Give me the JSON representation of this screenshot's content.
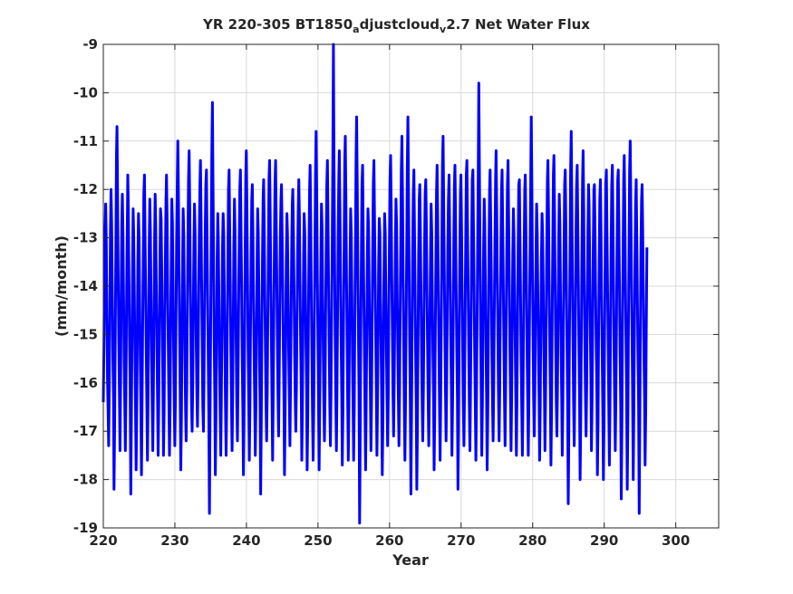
{
  "chart_data": {
    "type": "line",
    "title_parts": [
      "YR 220-305 BT1850",
      "a",
      "djustcloud",
      "v",
      "2.7 Net Water Flux"
    ],
    "xlabel": "Year",
    "ylabel": "(mm/month)",
    "xlim": [
      220,
      306
    ],
    "ylim": [
      -19,
      -9
    ],
    "xticks": [
      220,
      230,
      240,
      250,
      260,
      270,
      280,
      290,
      300
    ],
    "yticks": [
      -9,
      -10,
      -11,
      -12,
      -13,
      -14,
      -15,
      -16,
      -17,
      -18,
      -19
    ],
    "grid": true,
    "line_color": "#0000ff",
    "series": [
      {
        "x_start": 220.0,
        "x_step": 0.0833,
        "values": [
          -16.4,
          -15.2,
          -13.8,
          -12.8,
          -12.3,
          -13.1,
          -14.6,
          -15.9,
          -16.6,
          -17.3,
          -16.1,
          -14.4,
          -12.8,
          -12.0,
          -12.7,
          -14.0,
          -15.4,
          -16.3,
          -18.2,
          -16.9,
          -15.0,
          -13.3,
          -11.3,
          -10.7,
          -12.2,
          -13.8,
          -15.2,
          -16.3,
          -17.4,
          -16.0,
          -14.2,
          -12.7,
          -12.1,
          -12.9,
          -14.3,
          -15.6,
          -16.5,
          -17.4,
          -16.2,
          -14.5,
          -13.0,
          -11.7,
          -12.4,
          -13.8,
          -15.1,
          -16.1,
          -18.3,
          -16.9,
          -15.2,
          -13.7,
          -12.4,
          -12.9,
          -14.1,
          -15.4,
          -16.5,
          -17.8,
          -16.8,
          -15.1,
          -13.5,
          -12.5,
          -13.0,
          -14.3,
          -15.6,
          -16.5,
          -17.9,
          -16.6,
          -14.9,
          -13.3,
          -12.1,
          -11.7,
          -12.8,
          -14.1,
          -15.4,
          -16.4,
          -17.6,
          -16.5,
          -14.8,
          -13.2,
          -12.2,
          -12.9,
          -14.2,
          -15.5,
          -16.4,
          -17.4,
          -16.3,
          -14.6,
          -13.0,
          -12.1,
          -12.8,
          -14.0,
          -15.3,
          -16.3,
          -17.5,
          -16.4,
          -14.9,
          -13.4,
          -12.4,
          -12.6,
          -13.7,
          -15.0,
          -16.2,
          -17.5,
          -16.6,
          -15.0,
          -13.5,
          -12.3,
          -11.7,
          -12.6,
          -14.0,
          -15.3,
          -16.3,
          -17.5,
          -16.5,
          -14.9,
          -13.3,
          -12.2,
          -12.7,
          -13.9,
          -15.3,
          -16.5,
          -17.3,
          -16.3,
          -14.7,
          -13.1,
          -11.9,
          -11.0,
          -12.1,
          -13.6,
          -15.0,
          -16.2,
          -17.8,
          -16.7,
          -15.0,
          -13.4,
          -12.4,
          -12.9,
          -14.2,
          -15.6,
          -16.6,
          -17.2,
          -16.1,
          -14.5,
          -13.0,
          -11.8,
          -11.2,
          -12.4,
          -13.9,
          -15.3,
          -16.4,
          -17.0,
          -16.0,
          -14.5,
          -13.1,
          -12.3,
          -12.9,
          -14.1,
          -15.3,
          -16.3,
          -16.9,
          -15.8,
          -14.3,
          -12.9,
          -12.0,
          -11.4,
          -12.6,
          -14.0,
          -15.4,
          -16.5,
          -17.0,
          -15.9,
          -14.3,
          -12.8,
          -11.9,
          -11.6,
          -12.8,
          -14.2,
          -15.6,
          -16.7,
          -18.7,
          -16.9,
          -15.0,
          -13.2,
          -11.3,
          -10.2,
          -11.8,
          -13.5,
          -15.1,
          -16.3,
          -17.9,
          -16.7,
          -15.0,
          -13.4,
          -12.5,
          -13.0,
          -14.3,
          -15.6,
          -16.6,
          -17.5,
          -16.4,
          -14.8,
          -13.2,
          -12.5,
          -12.9,
          -14.1,
          -15.4,
          -16.5,
          -17.5,
          -16.5,
          -14.9,
          -13.3,
          -12.0,
          -11.6,
          -12.7,
          -14.0,
          -15.3,
          -16.4,
          -17.4,
          -16.3,
          -14.7,
          -13.2,
          -12.2,
          -12.8,
          -14.1,
          -15.4,
          -16.5,
          -17.2,
          -16.1,
          -14.5,
          -13.0,
          -12.0,
          -11.6,
          -12.7,
          -14.0,
          -15.4,
          -16.5,
          -17.9,
          -16.8,
          -15.0,
          -13.3,
          -11.7,
          -11.2,
          -12.4,
          -13.9,
          -15.3,
          -16.4,
          -17.6,
          -16.5,
          -14.9,
          -13.3,
          -12.2,
          -11.9,
          -12.9,
          -14.2,
          -15.5,
          -16.5,
          -17.5,
          -16.5,
          -14.9,
          -13.4,
          -12.4,
          -12.9,
          -14.2,
          -15.5,
          -16.5,
          -18.3,
          -16.8,
          -15.0,
          -13.4,
          -12.2,
          -11.8,
          -12.8,
          -14.1,
          -15.4,
          -16.4,
          -17.2,
          -16.2,
          -14.7,
          -13.1,
          -11.8,
          -11.4,
          -12.6,
          -13.9,
          -15.2,
          -16.3,
          -17.6,
          -16.4,
          -14.7,
          -13.1,
          -11.9,
          -11.4,
          -12.5,
          -13.8,
          -15.1,
          -16.2,
          -17.1,
          -16.1,
          -14.5,
          -13.0,
          -12.2,
          -11.9,
          -12.9,
          -14.1,
          -15.3,
          -16.3,
          -17.9,
          -16.7,
          -15.0,
          -13.4,
          -12.5,
          -12.9,
          -14.1,
          -15.3,
          -16.2,
          -17.3,
          -16.2,
          -14.7,
          -13.3,
          -12.3,
          -12.0,
          -12.9,
          -14.2,
          -15.4,
          -16.4,
          -17.0,
          -16.1,
          -14.7,
          -13.3,
          -12.4,
          -11.8,
          -12.6,
          -13.9,
          -15.2,
          -16.2,
          -17.6,
          -16.5,
          -14.9,
          -13.4,
          -12.5,
          -12.9,
          -14.0,
          -15.2,
          -16.2,
          -17.8,
          -16.7,
          -15.0,
          -13.3,
          -12.0,
          -11.5,
          -12.7,
          -14.1,
          -15.5,
          -16.6,
          -17.6,
          -16.5,
          -14.9,
          -13.2,
          -11.7,
          -10.8,
          -12.1,
          -13.6,
          -15.1,
          -16.3,
          -17.8,
          -16.7,
          -15.0,
          -13.4,
          -12.3,
          -12.8,
          -14.1,
          -15.4,
          -16.4,
          -17.2,
          -16.2,
          -14.6,
          -13.0,
          -11.9,
          -11.4,
          -12.6,
          -14.0,
          -15.4,
          -16.5,
          -17.3,
          -16.3,
          -14.7,
          -13.1,
          -11.5,
          -9.0,
          -11.3,
          -13.3,
          -15.0,
          -16.3,
          -17.4,
          -16.3,
          -14.6,
          -13.0,
          -11.8,
          -11.2,
          -12.4,
          -13.9,
          -15.2,
          -16.3,
          -17.7,
          -16.6,
          -14.9,
          -13.2,
          -11.4,
          -10.9,
          -12.2,
          -13.7,
          -15.1,
          -16.3,
          -17.6,
          -16.5,
          -14.9,
          -13.4,
          -12.4,
          -12.9,
          -14.2,
          -15.5,
          -16.5,
          -17.6,
          -16.5,
          -14.8,
          -13.1,
          -11.3,
          -10.5,
          -11.9,
          -13.5,
          -15.0,
          -16.2,
          -18.9,
          -17.0,
          -15.0,
          -13.2,
          -11.9,
          -11.5,
          -12.7,
          -14.1,
          -15.4,
          -16.5,
          -17.8,
          -16.6,
          -14.9,
          -13.3,
          -12.4,
          -12.8,
          -14.0,
          -15.2,
          -16.1,
          -17.4,
          -16.3,
          -14.7,
          -13.1,
          -11.9,
          -11.4,
          -12.5,
          -13.8,
          -15.1,
          -16.1,
          -17.5,
          -16.5,
          -15.0,
          -13.5,
          -12.6,
          -12.9,
          -14.1,
          -15.3,
          -16.3,
          -17.9,
          -16.8,
          -15.1,
          -13.5,
          -12.5,
          -12.9,
          -14.1,
          -15.4,
          -16.4,
          -17.3,
          -16.2,
          -14.6,
          -13.0,
          -11.8,
          -11.3,
          -12.4,
          -13.8,
          -15.1,
          -16.2,
          -17.1,
          -16.1,
          -14.6,
          -13.1,
          -12.2,
          -12.7,
          -14.0,
          -15.3,
          -16.4,
          -17.3,
          -16.2,
          -14.6,
          -13.0,
          -11.6,
          -10.9,
          -12.2,
          -13.8,
          -15.3,
          -16.5,
          -17.6,
          -16.5,
          -14.8,
          -13.1,
          -11.5,
          -10.5,
          -11.9,
          -13.6,
          -15.1,
          -16.4,
          -18.3,
          -16.9,
          -15.0,
          -13.3,
          -12.1,
          -11.6,
          -12.7,
          -14.1,
          -15.4,
          -16.5,
          -18.2,
          -16.9,
          -15.1,
          -13.4,
          -12.2,
          -11.9,
          -12.9,
          -14.2,
          -15.5,
          -16.5,
          -17.2,
          -16.1,
          -14.6,
          -13.1,
          -12.1,
          -11.8,
          -12.8,
          -14.1,
          -15.3,
          -16.3,
          -17.3,
          -16.2,
          -14.7,
          -13.2,
          -12.3,
          -12.9,
          -14.1,
          -15.4,
          -16.3,
          -17.8,
          -16.7,
          -15.0,
          -13.4,
          -12.1,
          -11.5,
          -12.6,
          -14.0,
          -15.3,
          -16.4,
          -17.6,
          -16.5,
          -14.8,
          -13.1,
          -11.5,
          -10.9,
          -12.1,
          -13.6,
          -15.0,
          -16.1,
          -17.2,
          -16.2,
          -14.7,
          -13.2,
          -12.2,
          -11.7,
          -12.7,
          -14.0,
          -15.2,
          -16.2,
          -17.5,
          -16.4,
          -14.7,
          -13.1,
          -11.9,
          -11.5,
          -12.6,
          -14.0,
          -15.3,
          -16.3,
          -18.2,
          -16.9,
          -15.1,
          -13.4,
          -12.1,
          -11.7,
          -12.8,
          -14.1,
          -15.4,
          -16.4,
          -17.3,
          -16.2,
          -14.6,
          -13.0,
          -11.7,
          -11.4,
          -12.6,
          -14.0,
          -15.3,
          -16.4,
          -17.4,
          -16.3,
          -14.7,
          -13.1,
          -11.8,
          -11.6,
          -12.7,
          -14.0,
          -15.3,
          -16.4,
          -17.6,
          -16.5,
          -14.8,
          -13.2,
          -11.7,
          -9.8,
          -11.6,
          -13.4,
          -15.0,
          -16.3,
          -17.5,
          -16.4,
          -14.8,
          -13.2,
          -12.2,
          -12.7,
          -13.9,
          -15.2,
          -16.3,
          -17.8,
          -16.7,
          -15.0,
          -13.3,
          -12.0,
          -11.6,
          -12.7,
          -14.0,
          -15.4,
          -16.5,
          -17.2,
          -16.1,
          -14.6,
          -13.1,
          -11.8,
          -11.2,
          -12.4,
          -13.8,
          -15.1,
          -16.2,
          -17.2,
          -16.2,
          -14.7,
          -13.2,
          -12.1,
          -11.6,
          -12.6,
          -13.9,
          -15.2,
          -16.3,
          -17.3,
          -16.2,
          -14.6,
          -13.0,
          -11.9,
          -11.4,
          -12.5,
          -13.8,
          -15.1,
          -16.2,
          -17.4,
          -16.4,
          -14.8,
          -13.3,
          -12.4,
          -12.9,
          -14.0,
          -15.2,
          -16.2,
          -17.5,
          -16.4,
          -14.8,
          -13.2,
          -11.9,
          -11.8,
          -12.9,
          -14.2,
          -15.5,
          -16.5,
          -17.5,
          -16.5,
          -14.9,
          -13.3,
          -12.0,
          -11.7,
          -12.8,
          -14.1,
          -15.4,
          -16.4,
          -17.5,
          -16.4,
          -14.8,
          -13.2,
          -11.8,
          -10.5,
          -12.0,
          -13.6,
          -15.1,
          -16.3,
          -17.1,
          -16.1,
          -14.6,
          -13.2,
          -12.3,
          -12.9,
          -14.2,
          -15.4,
          -16.3,
          -17.6,
          -16.5,
          -14.9,
          -13.4,
          -12.5,
          -12.9,
          -14.0,
          -15.2,
          -16.2,
          -17.4,
          -16.3,
          -14.7,
          -13.1,
          -11.8,
          -11.4,
          -12.5,
          -13.9,
          -15.2,
          -16.3,
          -17.7,
          -16.6,
          -14.9,
          -13.2,
          -11.7,
          -11.3,
          -12.5,
          -13.9,
          -15.3,
          -16.4,
          -17.1,
          -16.0,
          -14.5,
          -13.0,
          -12.1,
          -12.7,
          -14.0,
          -15.3,
          -16.3,
          -17.5,
          -16.4,
          -14.8,
          -13.2,
          -11.9,
          -11.6,
          -12.7,
          -14.0,
          -15.3,
          -16.4,
          -18.5,
          -17.0,
          -15.1,
          -13.3,
          -11.6,
          -10.8,
          -12.1,
          -13.7,
          -15.2,
          -16.4,
          -17.3,
          -16.2,
          -14.6,
          -13.0,
          -11.9,
          -11.5,
          -12.6,
          -14.0,
          -15.3,
          -16.4,
          -18.0,
          -16.8,
          -15.0,
          -13.3,
          -11.8,
          -11.2,
          -12.4,
          -13.9,
          -15.3,
          -16.4,
          -17.1,
          -16.0,
          -14.4,
          -12.9,
          -11.9,
          -12.3,
          -13.5,
          -14.8,
          -16.0,
          -17.4,
          -16.4,
          -14.8,
          -13.2,
          -12.0,
          -11.9,
          -12.9,
          -14.1,
          -15.3,
          -16.2,
          -17.9,
          -16.8,
          -15.0,
          -13.4,
          -12.2,
          -11.8,
          -12.9,
          -14.2,
          -15.5,
          -16.5,
          -18.0,
          -16.8,
          -15.0,
          -13.3,
          -11.9,
          -11.6,
          -12.7,
          -14.0,
          -15.3,
          -16.4,
          -17.7,
          -16.6,
          -14.9,
          -13.2,
          -11.9,
          -11.5,
          -12.6,
          -14.0,
          -15.4,
          -16.5,
          -17.4,
          -16.3,
          -14.7,
          -13.1,
          -11.8,
          -11.6,
          -12.7,
          -14.1,
          -15.4,
          -16.5,
          -18.4,
          -16.9,
          -15.0,
          -13.3,
          -11.8,
          -11.3,
          -12.5,
          -13.9,
          -15.2,
          -16.3,
          -18.2,
          -16.8,
          -15.0,
          -13.2,
          -11.6,
          -11.0,
          -12.2,
          -13.6,
          -15.0,
          -16.2,
          -18.0,
          -16.8,
          -15.0,
          -13.4,
          -12.3,
          -11.8,
          -12.9,
          -14.2,
          -15.4,
          -16.4,
          -18.7,
          -17.0,
          -15.0,
          -13.2,
          -12.2,
          -11.9,
          -12.9,
          -14.2,
          -15.4,
          -16.3,
          -17.7,
          -16.6,
          -14.9,
          -13.2
        ]
      }
    ]
  }
}
